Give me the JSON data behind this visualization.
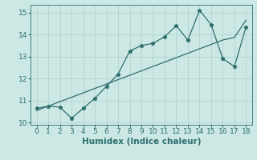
{
  "xlabel": "Humidex (Indice chaleur)",
  "x_data": [
    0,
    1,
    2,
    3,
    4,
    5,
    6,
    7,
    8,
    9,
    10,
    11,
    12,
    13,
    14,
    15,
    16,
    17,
    18
  ],
  "y_curve": [
    10.65,
    10.75,
    10.7,
    10.2,
    10.65,
    11.1,
    11.65,
    12.2,
    13.25,
    13.5,
    13.6,
    13.9,
    14.4,
    13.75,
    15.1,
    14.45,
    12.9,
    12.55,
    14.35
  ],
  "y_linear": [
    10.55,
    10.75,
    10.95,
    11.15,
    11.35,
    11.55,
    11.75,
    11.95,
    12.15,
    12.35,
    12.55,
    12.75,
    12.95,
    13.15,
    13.35,
    13.55,
    13.75,
    13.87,
    14.65
  ],
  "line_color": "#2e6e6e",
  "bg_color": "#cce8e4",
  "grid_color": "#b0d4d0",
  "xlim": [
    -0.5,
    18.5
  ],
  "ylim": [
    9.9,
    15.35
  ],
  "yticks": [
    10,
    11,
    12,
    13,
    14,
    15
  ],
  "xticks": [
    0,
    1,
    2,
    3,
    4,
    5,
    6,
    7,
    8,
    9,
    10,
    11,
    12,
    13,
    14,
    15,
    16,
    17,
    18
  ],
  "tick_fontsize": 6.5,
  "label_fontsize": 7.5,
  "linewidth": 0.9,
  "marker": "*",
  "markersize": 3.5
}
